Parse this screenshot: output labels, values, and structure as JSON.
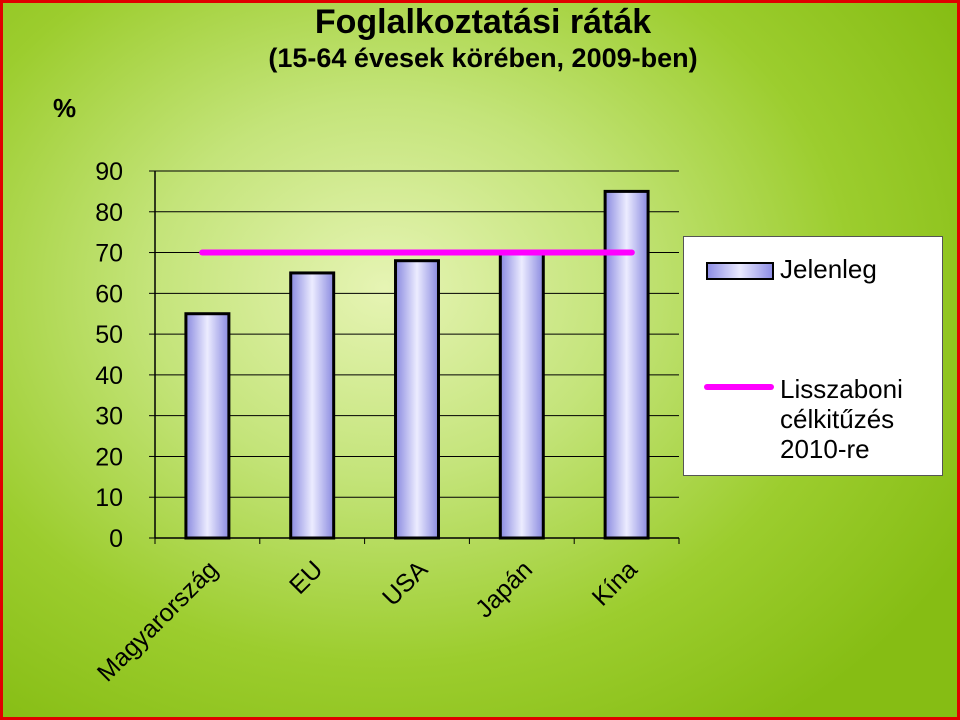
{
  "slide": {
    "title": "Foglalkoztatási ráták",
    "subtitle": "(15-64 évesek körében, 2009-ben)",
    "unit_label": "%"
  },
  "legend": {
    "series_label": "Jelenleg",
    "target_label": "Lisszaboni\ncélkitűzés\n2010-re"
  },
  "colors": {
    "bar": "#b8b8f4",
    "target_line": "#ff00ff",
    "border": "#e00000"
  },
  "chart_data": {
    "type": "bar",
    "title": "Foglalkoztatási ráták",
    "subtitle": "(15-64 évesek körében, 2009-ben)",
    "ylabel": "%",
    "xlabel": "",
    "categories": [
      "Magyarország",
      "EU",
      "USA",
      "Japán",
      "Kína"
    ],
    "series": [
      {
        "name": "Jelenleg",
        "values": [
          55,
          65,
          68,
          70,
          85
        ]
      }
    ],
    "target": {
      "name": "Lisszaboni célkitűzés 2010-re",
      "value": 70
    },
    "ylim": [
      0,
      90
    ],
    "yticks": [
      0,
      10,
      20,
      30,
      40,
      50,
      60,
      70,
      80,
      90
    ],
    "grid": true,
    "legend": "right"
  }
}
